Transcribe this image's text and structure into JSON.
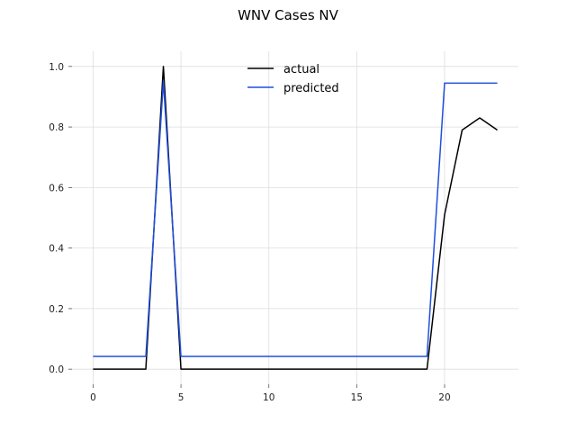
{
  "chart_data": {
    "type": "line",
    "title": "WNV Cases NV",
    "xlabel": "",
    "ylabel": "",
    "xlim": [
      -1.2,
      24.2
    ],
    "ylim": [
      -0.05,
      1.05
    ],
    "x_ticks": [
      0,
      5,
      10,
      15,
      20
    ],
    "y_ticks": [
      0.0,
      0.2,
      0.4,
      0.6,
      0.8,
      1.0
    ],
    "x_tick_labels": [
      "0",
      "5",
      "10",
      "15",
      "20"
    ],
    "y_tick_labels": [
      "0.0",
      "0.2",
      "0.4",
      "0.6",
      "0.8",
      "1.0"
    ],
    "grid": true,
    "legend_position": "top-center",
    "series": [
      {
        "name": "actual",
        "color": "#000000",
        "x": [
          0,
          1,
          2,
          3,
          4,
          5,
          6,
          7,
          8,
          9,
          10,
          11,
          12,
          13,
          14,
          15,
          16,
          17,
          18,
          19,
          20,
          21,
          22,
          23
        ],
        "values": [
          0,
          0,
          0,
          0,
          1.0,
          0,
          0,
          0,
          0,
          0,
          0,
          0,
          0,
          0,
          0,
          0,
          0,
          0,
          0,
          0,
          0.51,
          0.79,
          0.83,
          0.79
        ]
      },
      {
        "name": "predicted",
        "color": "#1f4fe0",
        "x": [
          0,
          1,
          2,
          3,
          4,
          5,
          6,
          7,
          8,
          9,
          10,
          11,
          12,
          13,
          14,
          15,
          16,
          17,
          18,
          19,
          20,
          21,
          22,
          23
        ],
        "values": [
          0.042,
          0.042,
          0.042,
          0.042,
          0.95,
          0.042,
          0.042,
          0.042,
          0.042,
          0.042,
          0.042,
          0.042,
          0.042,
          0.042,
          0.042,
          0.042,
          0.042,
          0.042,
          0.042,
          0.042,
          0.945,
          0.945,
          0.945,
          0.945
        ]
      }
    ]
  }
}
